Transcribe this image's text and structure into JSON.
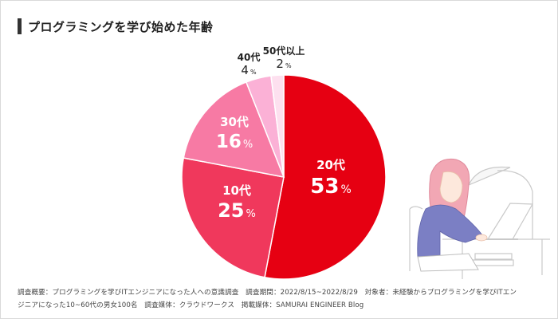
{
  "title": "プログラミングを学び始めた年齢",
  "chart_data": {
    "type": "pie",
    "title": "プログラミングを学び始めた年齢",
    "slices": [
      {
        "label": "20代",
        "value": 53,
        "display": "53",
        "unit": "%",
        "color": "#e60012"
      },
      {
        "label": "10代",
        "value": 25,
        "display": "25",
        "unit": "%",
        "color": "#f0385c"
      },
      {
        "label": "30代",
        "value": 16,
        "display": "16",
        "unit": "%",
        "color": "#f77aa4"
      },
      {
        "label": "40代",
        "value": 4,
        "display": "4",
        "unit": "%",
        "color": "#fbb1d6"
      },
      {
        "label": "50代以上",
        "value": 2,
        "display": "2",
        "unit": "%",
        "color": "#fde0ef"
      }
    ]
  },
  "footnote": {
    "line1": "調査概要：プログラミングを学びITエンジニアになった人への意識調査　調査期間：2022/8/15~2022/8/29　対象者：未経験からプログラミングを学びITエン",
    "line2": "ジニアになった10~60代の男女100名　調査媒体：クラウドワークス　掲載媒体：SAMURAI ENGINEER Blog"
  },
  "colors": {
    "title_bar": "#333333",
    "illustration_line": "#c9c9c9",
    "illustration_hair": "#f2a7b4",
    "illustration_sweater": "#7b7fc4"
  }
}
